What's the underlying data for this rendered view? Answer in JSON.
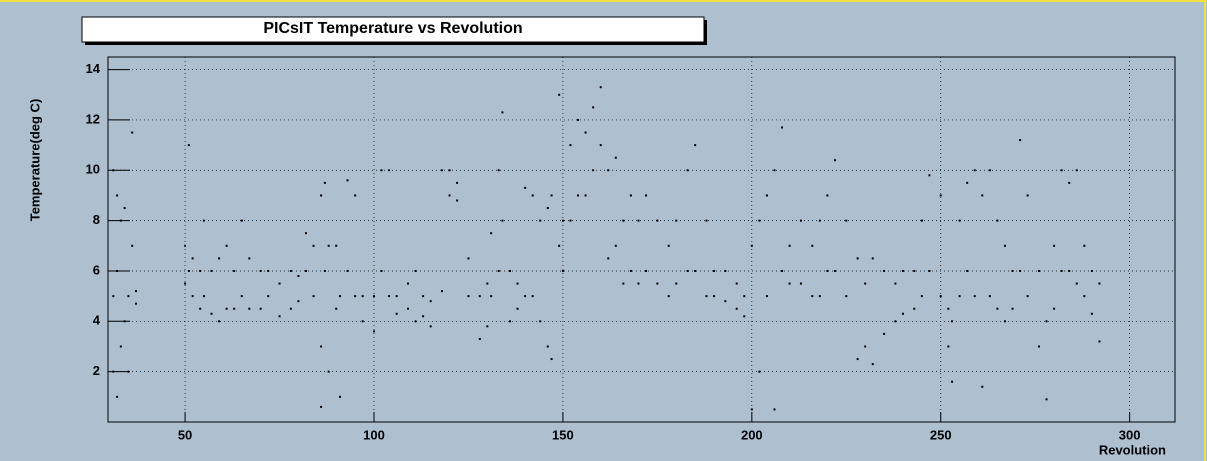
{
  "chart_data": {
    "type": "scatter",
    "title": "PICsIT Temperature vs Revolution",
    "x_label": "Revolution",
    "y_label": "Temperature(deg C)",
    "color": "#000000",
    "grid": true,
    "xlim": [
      29.6,
      312
    ],
    "ylim": [
      0,
      14.5
    ],
    "xticks": [
      50,
      100,
      150,
      200,
      250,
      300
    ],
    "yticks": [
      2,
      4,
      6,
      8,
      10,
      12,
      14
    ],
    "x": [
      31,
      31,
      31,
      32,
      32,
      32,
      33,
      33,
      34,
      34,
      35,
      35,
      36,
      36,
      37,
      37,
      50,
      50,
      51,
      51,
      52,
      52,
      54,
      54,
      55,
      55,
      57,
      57,
      59,
      59,
      61,
      61,
      63,
      63,
      65,
      65,
      67,
      67,
      70,
      70,
      72,
      72,
      75,
      75,
      78,
      78,
      80,
      80,
      82,
      82,
      84,
      84,
      86,
      86,
      86,
      87,
      87,
      88,
      88,
      90,
      90,
      91,
      91,
      93,
      93,
      95,
      95,
      97,
      97,
      100,
      100,
      102,
      102,
      104,
      104,
      106,
      106,
      109,
      109,
      111,
      111,
      113,
      113,
      115,
      115,
      118,
      118,
      120,
      120,
      122,
      122,
      125,
      125,
      128,
      128,
      130,
      130,
      131,
      131,
      133,
      133,
      134,
      134,
      136,
      136,
      138,
      138,
      140,
      140,
      142,
      142,
      144,
      144,
      146,
      146,
      147,
      147,
      149,
      149,
      150,
      150,
      152,
      152,
      154,
      154,
      156,
      156,
      158,
      158,
      160,
      160,
      162,
      162,
      164,
      164,
      166,
      166,
      168,
      168,
      170,
      170,
      172,
      172,
      175,
      175,
      178,
      178,
      180,
      180,
      183,
      183,
      185,
      185,
      188,
      188,
      190,
      190,
      193,
      193,
      196,
      196,
      198,
      198,
      200,
      200,
      202,
      202,
      204,
      204,
      206,
      206,
      208,
      208,
      210,
      210,
      213,
      213,
      216,
      216,
      218,
      218,
      220,
      220,
      222,
      222,
      225,
      225,
      228,
      228,
      230,
      230,
      232,
      232,
      235,
      235,
      238,
      238,
      240,
      240,
      243,
      243,
      245,
      245,
      247,
      247,
      250,
      250,
      252,
      252,
      253,
      253,
      255,
      255,
      257,
      257,
      259,
      259,
      261,
      261,
      263,
      263,
      265,
      265,
      267,
      267,
      269,
      269,
      271,
      271,
      273,
      273,
      276,
      276,
      278,
      278,
      280,
      280,
      282,
      282,
      284,
      284,
      286,
      286,
      288,
      288,
      290,
      290,
      292,
      292
    ],
    "values": [
      10,
      5,
      2,
      9,
      6,
      1,
      8,
      3,
      8.5,
      4,
      5,
      2,
      11.5,
      7,
      5.2,
      4.7,
      7,
      5.5,
      11,
      6,
      6.5,
      5,
      6,
      4.5,
      8,
      5,
      6,
      4.3,
      6.5,
      4,
      7,
      4.5,
      6,
      4.5,
      8,
      5,
      6.5,
      4.5,
      6,
      4.5,
      6,
      5,
      5.5,
      4.2,
      6,
      4.5,
      5.8,
      4.8,
      7.5,
      6,
      7,
      5,
      9,
      3,
      0.6,
      9.5,
      6,
      7,
      2,
      7,
      4.5,
      5,
      1,
      9.6,
      6,
      9,
      5,
      5,
      4,
      5,
      3.6,
      10,
      6,
      10,
      5,
      5,
      4.3,
      5.5,
      4.5,
      6,
      4,
      5,
      4.2,
      4.8,
      3.8,
      10,
      5.2,
      10,
      9,
      9.5,
      8.8,
      6.5,
      5,
      5,
      3.3,
      5.5,
      3.8,
      7.5,
      5,
      10,
      6,
      12.3,
      8,
      6,
      4,
      5.5,
      4.5,
      9.3,
      5,
      9,
      5,
      8,
      4,
      8.5,
      3,
      9,
      2.5,
      13,
      7,
      8,
      6,
      11,
      8,
      12,
      9,
      11.5,
      9,
      12.5,
      10,
      13.3,
      11,
      10,
      6.5,
      10.5,
      7,
      8,
      5.5,
      9,
      6,
      8,
      5.5,
      9,
      6,
      8,
      5.5,
      7,
      5,
      8,
      5.5,
      10,
      6,
      11,
      6,
      8,
      5,
      6,
      5,
      6,
      4.8,
      5.5,
      4.5,
      5,
      4.2,
      7,
      0.5,
      8,
      2,
      9,
      5,
      10,
      0.5,
      11.7,
      6,
      7,
      5.5,
      8,
      5.5,
      7,
      5,
      8,
      5,
      9,
      6,
      10.4,
      6,
      8,
      5,
      6.5,
      2.5,
      5.5,
      3,
      6.5,
      2.3,
      6,
      3.5,
      5.5,
      4,
      6,
      4.3,
      6,
      4.5,
      8,
      5,
      9.8,
      6,
      9,
      5,
      4.5,
      3,
      4,
      1.6,
      8,
      5,
      9.5,
      6,
      10,
      5,
      9,
      1.4,
      10,
      5,
      8,
      4.5,
      7,
      4,
      6,
      4.5,
      11.2,
      6,
      9,
      5,
      6,
      3,
      4,
      0.9,
      7,
      4.5,
      10,
      6,
      9.5,
      6,
      10,
      5.5,
      7,
      5,
      6,
      4.3,
      5.5,
      3.2
    ]
  }
}
